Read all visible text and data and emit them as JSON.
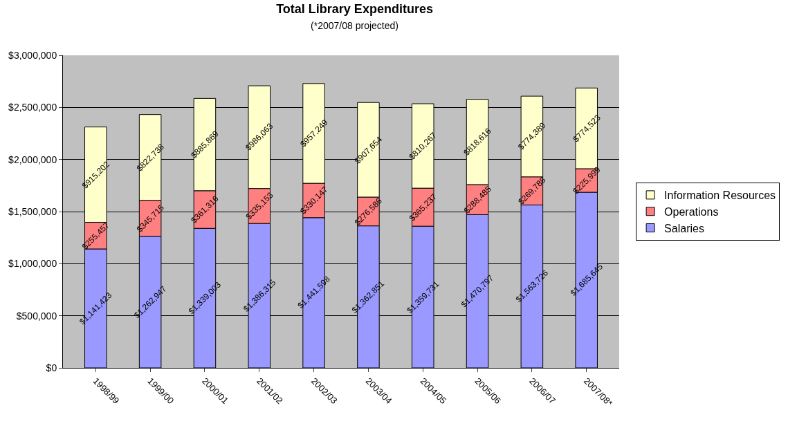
{
  "chart_data": {
    "type": "bar",
    "title": "Total Library Expenditures",
    "subtitle": "(*2007/08 projected)",
    "categories": [
      "1998/99",
      "1999/00",
      "2000/01",
      "2001/02",
      "2002/03",
      "2003/04",
      "2004/05",
      "2005/06",
      "2006/07",
      "2007/08*"
    ],
    "stacked": true,
    "grid": "y",
    "legend": "right",
    "ylim": [
      0,
      3000000
    ],
    "yticks": [
      {
        "value": 0,
        "label": "$0"
      },
      {
        "value": 500000,
        "label": "$500,000"
      },
      {
        "value": 1000000,
        "label": "$1,000,000"
      },
      {
        "value": 1500000,
        "label": "$1,500,000"
      },
      {
        "value": 2000000,
        "label": "$2,000,000"
      },
      {
        "value": 2500000,
        "label": "$2,500,000"
      },
      {
        "value": 3000000,
        "label": "$3,000,000"
      }
    ],
    "series": [
      {
        "name": "Salaries",
        "color": "#9999ff",
        "values": [
          1141423,
          1262947,
          1339003,
          1386315,
          1441598,
          1362851,
          1359731,
          1470797,
          1563726,
          1685645
        ],
        "value_labels": [
          "$1,141,423",
          "$1,262,947",
          "$1,339,003",
          "$1,386,315",
          "$1,441,598",
          "$1,362,851",
          "$1,359,731",
          "$1,470,797",
          "$1,563,726",
          "$1,685,645"
        ]
      },
      {
        "name": "Operations",
        "color": "#ff8080",
        "values": [
          255457,
          345715,
          361316,
          335153,
          330147,
          276586,
          365237,
          288485,
          269788,
          225999
        ],
        "value_labels": [
          "$255,457",
          "$345,715",
          "$361,316",
          "$335,153",
          "$330,147",
          "$276,586",
          "$365,237",
          "$288,485",
          "$269,788",
          "$225,999"
        ]
      },
      {
        "name": "Information Resources",
        "color": "#ffffcc",
        "values": [
          915202,
          822738,
          885869,
          986063,
          957249,
          907654,
          810267,
          818616,
          774389,
          774523
        ],
        "value_labels": [
          "$915,202",
          "$822,738",
          "$885,869",
          "$986,063",
          "$957,249",
          "$907,654",
          "$810,267",
          "$818,616",
          "$774,389",
          "$774,523"
        ]
      }
    ]
  }
}
